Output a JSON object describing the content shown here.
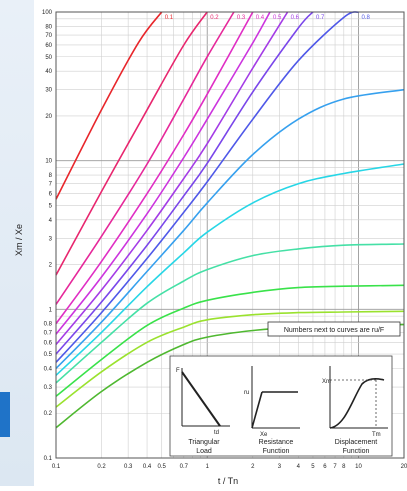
{
  "chart_data": {
    "type": "line",
    "x_scale": "log",
    "y_scale": "log",
    "xlim": [
      0.1,
      20
    ],
    "ylim": [
      0.1,
      100
    ],
    "ylabel": "Xm / Xe",
    "xlabel": "t / Tn",
    "x_ticks": [
      {
        "value": 0.1,
        "label": "0.1"
      },
      {
        "value": 0.2,
        "label": "0.2"
      },
      {
        "value": 0.3,
        "label": "0.3"
      },
      {
        "value": 0.4,
        "label": "0.4"
      },
      {
        "value": 0.5,
        "label": "0.5"
      },
      {
        "value": 0.7,
        "label": "0.7"
      },
      {
        "value": 1,
        "label": "1"
      },
      {
        "value": 2,
        "label": "2"
      },
      {
        "value": 3,
        "label": "3"
      },
      {
        "value": 4,
        "label": "4"
      },
      {
        "value": 5,
        "label": "5"
      },
      {
        "value": 6,
        "label": "6"
      },
      {
        "value": 7,
        "label": "7"
      },
      {
        "value": 8,
        "label": "8"
      },
      {
        "value": 10,
        "label": "10"
      },
      {
        "value": 20,
        "label": "20"
      }
    ],
    "y_ticks": [
      {
        "value": 0.1,
        "label": "0.1"
      },
      {
        "value": 0.2,
        "label": "0.2"
      },
      {
        "value": 0.3,
        "label": "0.3"
      },
      {
        "value": 0.4,
        "label": "0.4"
      },
      {
        "value": 0.5,
        "label": "0.5"
      },
      {
        "value": 0.6,
        "label": "0.6"
      },
      {
        "value": 0.7,
        "label": "0.7"
      },
      {
        "value": 0.8,
        "label": "0.8"
      },
      {
        "value": 1,
        "label": "1"
      },
      {
        "value": 2,
        "label": "2"
      },
      {
        "value": 3,
        "label": "3"
      },
      {
        "value": 4,
        "label": "4"
      },
      {
        "value": 5,
        "label": "5"
      },
      {
        "value": 6,
        "label": "6"
      },
      {
        "value": 7,
        "label": "7"
      },
      {
        "value": 8,
        "label": "8"
      },
      {
        "value": 10,
        "label": "10"
      },
      {
        "value": 20,
        "label": "20"
      },
      {
        "value": 30,
        "label": "30"
      },
      {
        "value": 40,
        "label": "40"
      },
      {
        "value": 50,
        "label": "50"
      },
      {
        "value": 60,
        "label": "60"
      },
      {
        "value": 70,
        "label": "70"
      },
      {
        "value": 80,
        "label": "80"
      },
      {
        "value": 100,
        "label": "100"
      }
    ],
    "grid": true,
    "annotation": "Numbers next to curves are ru/F",
    "series": [
      {
        "name": "0.1",
        "color": "#e8262b",
        "x": [
          0.1,
          0.2,
          0.35,
          0.5
        ],
        "y": [
          5.5,
          22,
          62,
          100
        ]
      },
      {
        "name": "0.2",
        "color": "#e8266e",
        "x": [
          0.1,
          0.2,
          0.4,
          0.7,
          1.0
        ],
        "y": [
          1.7,
          6.2,
          22,
          60,
          100
        ]
      },
      {
        "name": "0.3",
        "color": "#e6289a",
        "x": [
          0.1,
          0.2,
          0.4,
          0.7,
          1.0,
          1.5
        ],
        "y": [
          1.08,
          3.1,
          9.5,
          26,
          50,
          100
        ]
      },
      {
        "name": "0.4",
        "color": "#e02ec4",
        "x": [
          0.1,
          0.2,
          0.4,
          0.7,
          1.0,
          2.0
        ],
        "y": [
          0.8,
          2.1,
          6.0,
          15,
          28,
          100
        ]
      },
      {
        "name": "0.5",
        "color": "#cc34de",
        "x": [
          0.1,
          0.2,
          0.4,
          0.7,
          1.0,
          2.0,
          2.6
        ],
        "y": [
          0.68,
          1.65,
          4.4,
          10.5,
          19,
          62,
          100
        ]
      },
      {
        "name": "0.6",
        "color": "#a43ce6",
        "x": [
          0.1,
          0.2,
          0.4,
          0.7,
          1.0,
          2.0,
          3.4
        ],
        "y": [
          0.58,
          1.35,
          3.4,
          7.6,
          13,
          42,
          100
        ]
      },
      {
        "name": "0.7",
        "color": "#7a46ea",
        "x": [
          0.1,
          0.2,
          0.4,
          0.7,
          1.0,
          2.0,
          4.0,
          5.0
        ],
        "y": [
          0.5,
          1.12,
          2.7,
          5.8,
          9.6,
          29,
          78,
          100
        ]
      },
      {
        "name": "0.8",
        "color": "#4f58e8",
        "x": [
          0.1,
          0.2,
          0.4,
          0.7,
          1.0,
          2.0,
          4.0,
          8.0,
          10.0
        ],
        "y": [
          0.44,
          0.95,
          2.2,
          4.5,
          7.2,
          19,
          47,
          92,
          100
        ]
      },
      {
        "name": "",
        "color": "#36a0ee",
        "x": [
          0.1,
          0.2,
          0.4,
          0.7,
          1.0,
          2.0,
          4.0,
          8.0,
          20.0
        ],
        "y": [
          0.4,
          0.82,
          1.8,
          3.4,
          5.2,
          11,
          19,
          26,
          30
        ]
      },
      {
        "name": "",
        "color": "#27d6e6",
        "x": [
          0.1,
          0.2,
          0.4,
          0.7,
          1.0,
          2.0,
          4.0,
          8.0,
          20.0
        ],
        "y": [
          0.36,
          0.7,
          1.42,
          2.4,
          3.3,
          5.2,
          7.0,
          8.2,
          9.5
        ]
      },
      {
        "name": "",
        "color": "#45e0a6",
        "x": [
          0.1,
          0.2,
          0.4,
          0.7,
          1.0,
          2.0,
          4.0,
          8.0,
          20.0
        ],
        "y": [
          0.32,
          0.6,
          1.1,
          1.55,
          1.85,
          2.3,
          2.55,
          2.7,
          2.75
        ]
      },
      {
        "name": "",
        "color": "#39e24a",
        "x": [
          0.1,
          0.2,
          0.4,
          0.7,
          1.0,
          2.0,
          4.0,
          8.0,
          20.0
        ],
        "y": [
          0.26,
          0.46,
          0.78,
          1.02,
          1.15,
          1.3,
          1.4,
          1.43,
          1.45
        ]
      },
      {
        "name": "",
        "color": "#9ae22e",
        "x": [
          0.1,
          0.2,
          0.4,
          0.7,
          1.0,
          2.0,
          4.0,
          8.0,
          20.0
        ],
        "y": [
          0.22,
          0.38,
          0.6,
          0.76,
          0.85,
          0.92,
          0.95,
          0.96,
          0.97
        ]
      },
      {
        "name": "",
        "color": "#4fb830",
        "x": [
          0.1,
          0.2,
          0.4,
          0.7,
          1.0,
          2.0,
          4.0,
          8.0,
          20.0
        ],
        "y": [
          0.16,
          0.28,
          0.44,
          0.58,
          0.65,
          0.72,
          0.76,
          0.78,
          0.79
        ]
      }
    ],
    "inset": {
      "panels": [
        {
          "label_line1": "Triangular",
          "label_line2": "Load",
          "axis_top": "F",
          "axis_right": "td"
        },
        {
          "label_line1": "Resistance",
          "label_line2": "Function",
          "axis_top": "ru",
          "axis_right": "Xe"
        },
        {
          "label_line1": "Displacement",
          "label_line2": "Function",
          "axis_top": "Xm",
          "axis_right": "Tm"
        }
      ]
    }
  }
}
